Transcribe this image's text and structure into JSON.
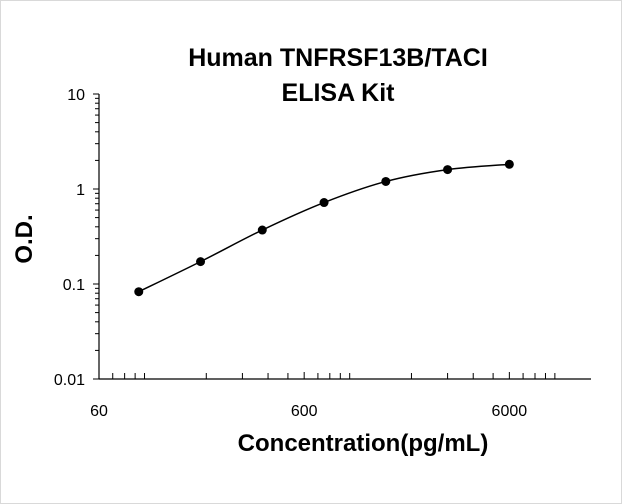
{
  "chart_data": {
    "type": "scatter",
    "title_lines": [
      "Human TNFRSF13B/TACI",
      "ELISA Kit"
    ],
    "xlabel": "Concentration(pg/mL)",
    "ylabel": "O.D.",
    "x_scale": "log",
    "y_scale": "log",
    "xlim": [
      60,
      15000
    ],
    "ylim": [
      0.01,
      10
    ],
    "x_ticks": [
      60,
      600,
      6000
    ],
    "y_ticks": [
      0.01,
      0.1,
      1,
      10
    ],
    "grid": false,
    "legend": "none",
    "series": [
      {
        "x": [
          93.75,
          187.5,
          375,
          750,
          1500,
          3000,
          6000
        ],
        "y": [
          0.083,
          0.172,
          0.37,
          0.72,
          1.2,
          1.6,
          1.82
        ]
      }
    ],
    "colors": {
      "line": "#000000",
      "marker": "#000000",
      "axis": "#000000"
    }
  }
}
